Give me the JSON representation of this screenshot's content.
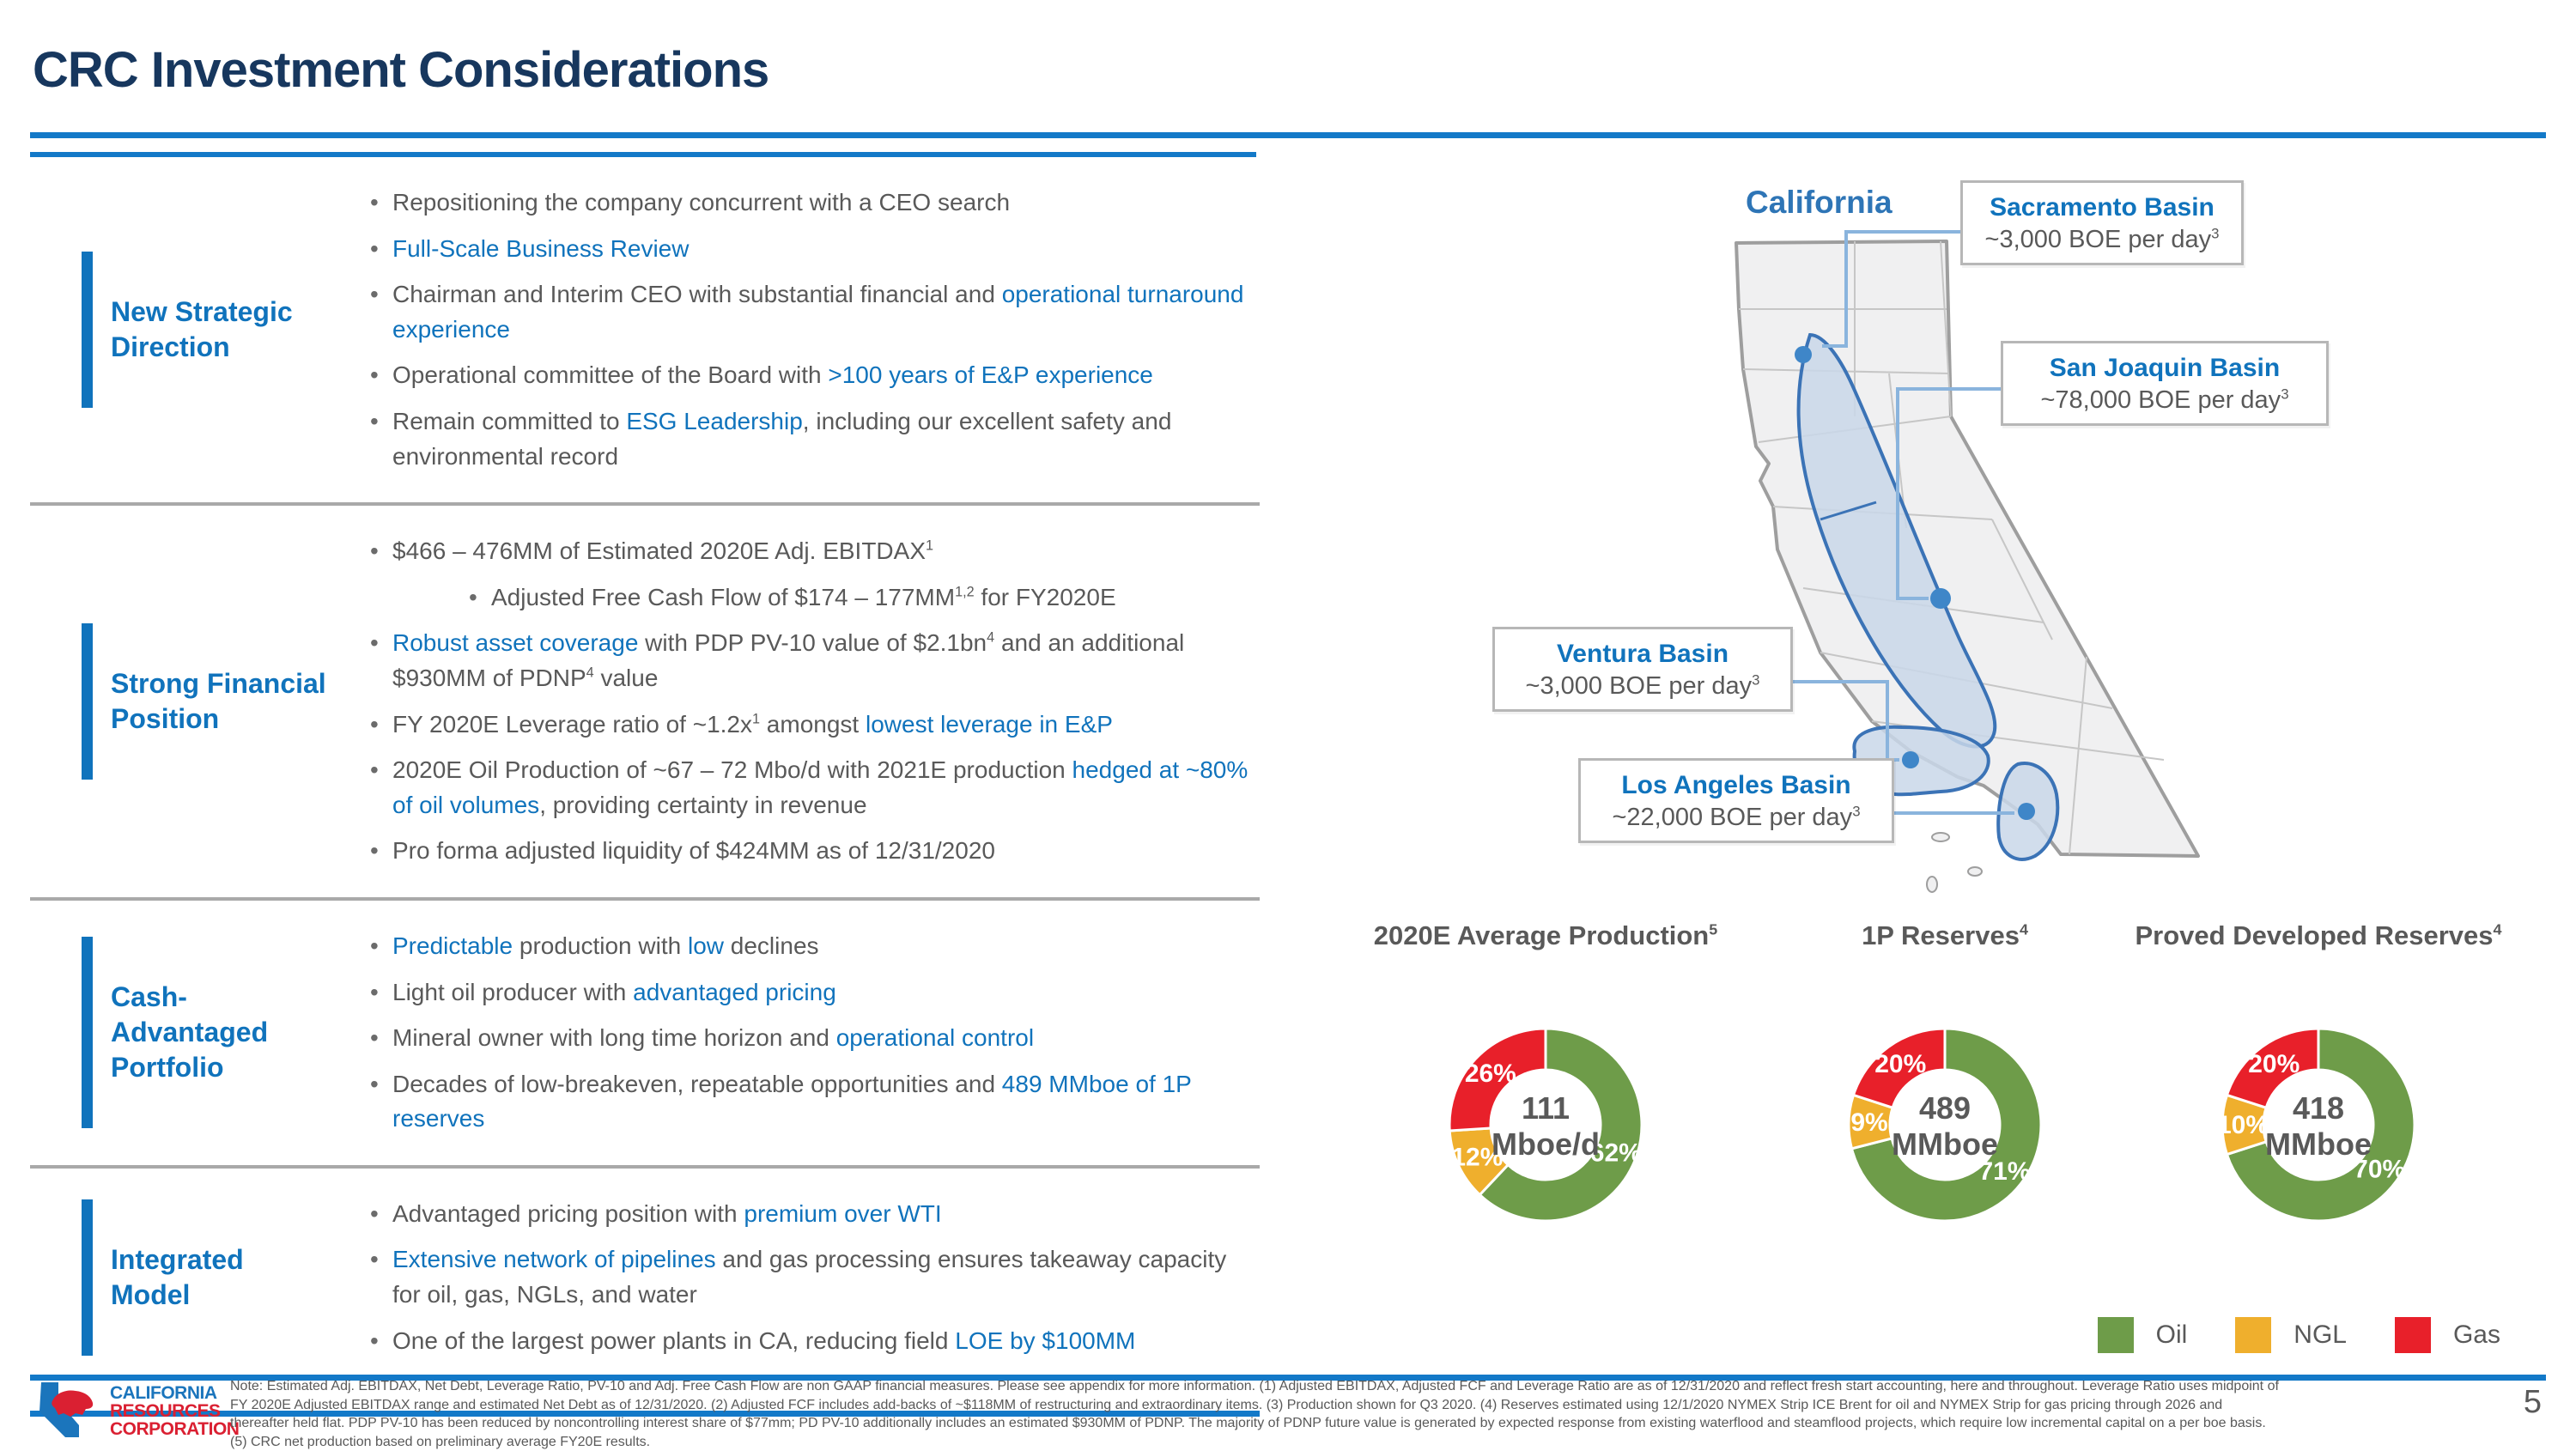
{
  "colors": {
    "navy": "#17375E",
    "accent_blue": "#1073BC",
    "rule_blue": "#1379C8",
    "body_gray": "#595959",
    "separator_gray": "#A9A9A9",
    "oil_green": "#6E9C49",
    "ngl_yellow": "#EFAF2D",
    "gas_red": "#E8202A",
    "basin_fill": "#C9D7E9",
    "basin_stroke": "#3B73B6",
    "logo_blue": "#1B75BC",
    "logo_red": "#DA2032"
  },
  "header": {
    "title": "CRC Investment Considerations"
  },
  "sections": [
    {
      "title": "New Strategic Direction",
      "bullets": [
        {
          "segs": [
            {
              "t": "Repositioning the company concurrent with a CEO search"
            }
          ]
        },
        {
          "segs": [
            {
              "t": "Full-Scale Business Review",
              "b": 1
            }
          ]
        },
        {
          "segs": [
            {
              "t": "Chairman and Interim CEO with substantial financial and "
            },
            {
              "t": "operational turnaround experience",
              "b": 1
            }
          ]
        },
        {
          "segs": [
            {
              "t": "Operational committee of the Board with "
            },
            {
              "t": ">100 years of E&P experience",
              "b": 1
            }
          ]
        },
        {
          "segs": [
            {
              "t": "Remain committed to "
            },
            {
              "t": "ESG Leadership",
              "b": 1
            },
            {
              "t": ", including our excellent safety and environmental record"
            }
          ]
        }
      ]
    },
    {
      "title": "Strong Financial Position",
      "bullets": [
        {
          "segs": [
            {
              "t": "$466 – 476MM of Estimated 2020E Adj. EBITDAX"
            },
            {
              "t": "1",
              "sup": 1
            }
          ]
        },
        {
          "indent": 1,
          "segs": [
            {
              "t": "Adjusted Free Cash Flow of $174 – 177MM"
            },
            {
              "t": "1,2",
              "sup": 1
            },
            {
              "t": " for FY2020E"
            }
          ]
        },
        {
          "segs": [
            {
              "t": "Robust asset coverage",
              "b": 1
            },
            {
              "t": " with PDP PV-10 value of $2.1bn"
            },
            {
              "t": "4",
              "sup": 1
            },
            {
              "t": " and an additional $930MM of PDNP"
            },
            {
              "t": "4",
              "sup": 1
            },
            {
              "t": " value"
            }
          ]
        },
        {
          "segs": [
            {
              "t": "FY 2020E Leverage ratio of ~1.2x"
            },
            {
              "t": "1",
              "sup": 1
            },
            {
              "t": " amongst "
            },
            {
              "t": "lowest leverage in E&P",
              "b": 1
            }
          ]
        },
        {
          "segs": [
            {
              "t": "2020E Oil Production of ~67 – 72 Mbo/d with 2021E production "
            },
            {
              "t": "hedged at ~80% of oil volumes",
              "b": 1
            },
            {
              "t": ", providing certainty in revenue"
            }
          ]
        },
        {
          "segs": [
            {
              "t": "Pro forma adjusted liquidity of $424MM as of 12/31/2020"
            }
          ]
        }
      ]
    },
    {
      "title": "Cash-Advantaged Portfolio",
      "bullets": [
        {
          "segs": [
            {
              "t": "Predictable",
              "b": 1
            },
            {
              "t": " production with "
            },
            {
              "t": "low",
              "b": 1
            },
            {
              "t": " declines"
            }
          ]
        },
        {
          "segs": [
            {
              "t": "Light oil producer with "
            },
            {
              "t": "advantaged pricing",
              "b": 1
            }
          ]
        },
        {
          "segs": [
            {
              "t": "Mineral owner with long time horizon and "
            },
            {
              "t": "operational control",
              "b": 1
            }
          ]
        },
        {
          "segs": [
            {
              "t": "Decades of low-breakeven, repeatable opportunities and "
            },
            {
              "t": "489 MMboe of 1P reserves",
              "b": 1
            }
          ]
        }
      ]
    },
    {
      "title": "Integrated Model",
      "bullets": [
        {
          "segs": [
            {
              "t": "Advantaged pricing position with "
            },
            {
              "t": "premium over WTI",
              "b": 1
            }
          ]
        },
        {
          "segs": [
            {
              "t": "Extensive network of pipelines",
              "b": 1
            },
            {
              "t": " and gas processing ensures takeaway capacity for oil, gas, NGLs, and water"
            }
          ]
        },
        {
          "segs": [
            {
              "t": "One of the largest power plants in CA, reducing field "
            },
            {
              "t": "LOE by $100MM",
              "b": 1
            }
          ]
        }
      ]
    }
  ],
  "map": {
    "state_label": "California",
    "callouts": [
      {
        "name": "Sacramento Basin",
        "value": "~3,000 BOE per day",
        "sup": "3"
      },
      {
        "name": "San Joaquin Basin",
        "value": "~78,000 BOE per day",
        "sup": "3"
      },
      {
        "name": "Ventura Basin",
        "value": "~3,000 BOE per day",
        "sup": "3"
      },
      {
        "name": "Los Angeles Basin",
        "value": "~22,000 BOE per day",
        "sup": "3"
      }
    ]
  },
  "chart_data": [
    {
      "type": "donut",
      "title": "2020E Average Production",
      "title_sup": "5",
      "center": [
        "111",
        "Mboe/d"
      ],
      "slices": [
        {
          "label": "Oil",
          "value": 62
        },
        {
          "label": "NGL",
          "value": 12
        },
        {
          "label": "Gas",
          "value": 26
        }
      ]
    },
    {
      "type": "donut",
      "title": "1P Reserves",
      "title_sup": "4",
      "center": [
        "489",
        "MMboe"
      ],
      "slices": [
        {
          "label": "Oil",
          "value": 71
        },
        {
          "label": "NGL",
          "value": 9
        },
        {
          "label": "Gas",
          "value": 20
        }
      ]
    },
    {
      "type": "donut",
      "title": "Proved Developed Reserves",
      "title_sup": "4",
      "center": [
        "418",
        "MMboe"
      ],
      "slices": [
        {
          "label": "Oil",
          "value": 70
        },
        {
          "label": "NGL",
          "value": 10
        },
        {
          "label": "Gas",
          "value": 20
        }
      ]
    }
  ],
  "legend": [
    {
      "label": "Oil",
      "color": "#6E9C49"
    },
    {
      "label": "NGL",
      "color": "#EFAF2D"
    },
    {
      "label": "Gas",
      "color": "#E8202A"
    }
  ],
  "footer": {
    "logo_lines": [
      "CALIFORNIA",
      "RESOURCES",
      "CORPORATION"
    ],
    "notes": [
      "Note: Estimated Adj. EBITDAX, Net Debt, Leverage Ratio, PV-10 and Adj. Free Cash Flow are non GAAP financial measures. Please see appendix for more information. (1) Adjusted EBITDAX, Adjusted FCF and Leverage Ratio are as of 12/31/2020 and reflect fresh start accounting, here and throughout. Leverage Ratio uses midpoint of",
      "FY 2020E Adjusted EBITDAX range and estimated Net Debt as of 12/31/2020. (2) Adjusted FCF includes add-backs of ~$118MM of restructuring and extraordinary items. (3) Production shown for Q3 2020. (4) Reserves estimated using 12/1/2020 NYMEX Strip ICE Brent for oil and NYMEX Strip for gas pricing through 2026 and",
      "thereafter held flat. PDP PV-10 has been reduced by noncontrolling interest share of $77mm; PD PV-10 additionally includes an estimated $930MM of PDNP. The majority of PDNP future value is generated by expected response from existing waterflood and steamflood projects, which require low incremental capital on a per boe basis.",
      "(5) CRC net production based on preliminary average FY20E results."
    ],
    "page_number": "5"
  }
}
